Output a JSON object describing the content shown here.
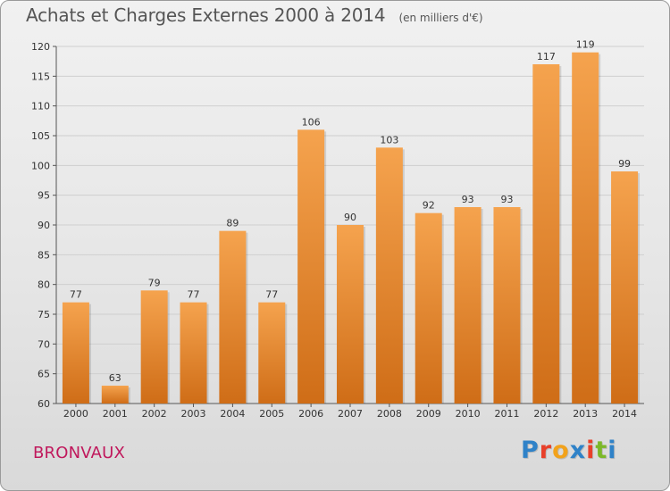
{
  "header": {
    "title": "Achats et Charges Externes 2000 à 2014",
    "subtitle": "(en milliers d'€)"
  },
  "footer": {
    "place": "BRONVAUX",
    "brand": "Proxiti"
  },
  "colors": {
    "bar_light": "#f5a34e",
    "bar_dark": "#cf6d17",
    "grid": "#cfcfcf",
    "place": "#c0185c",
    "brand_letters": [
      "#2f82c8",
      "#e8402a",
      "#f2a21b",
      "#2f82c8",
      "#e8402a",
      "#7cb829",
      "#2f82c8"
    ]
  },
  "chart_data": {
    "type": "bar",
    "title": "Achats et Charges Externes 2000 à 2014",
    "subtitle": "(en milliers d'€)",
    "xlabel": "",
    "ylabel": "",
    "categories": [
      "2000",
      "2001",
      "2002",
      "2003",
      "2004",
      "2005",
      "2006",
      "2007",
      "2008",
      "2009",
      "2010",
      "2011",
      "2012",
      "2013",
      "2014"
    ],
    "values": [
      77,
      63,
      79,
      77,
      89,
      77,
      106,
      90,
      103,
      92,
      93,
      93,
      117,
      119,
      99
    ],
    "ylim": [
      60,
      120
    ],
    "yticks": [
      60,
      65,
      70,
      75,
      80,
      85,
      90,
      95,
      100,
      105,
      110,
      115,
      120
    ],
    "grid": true,
    "legend": "none"
  }
}
